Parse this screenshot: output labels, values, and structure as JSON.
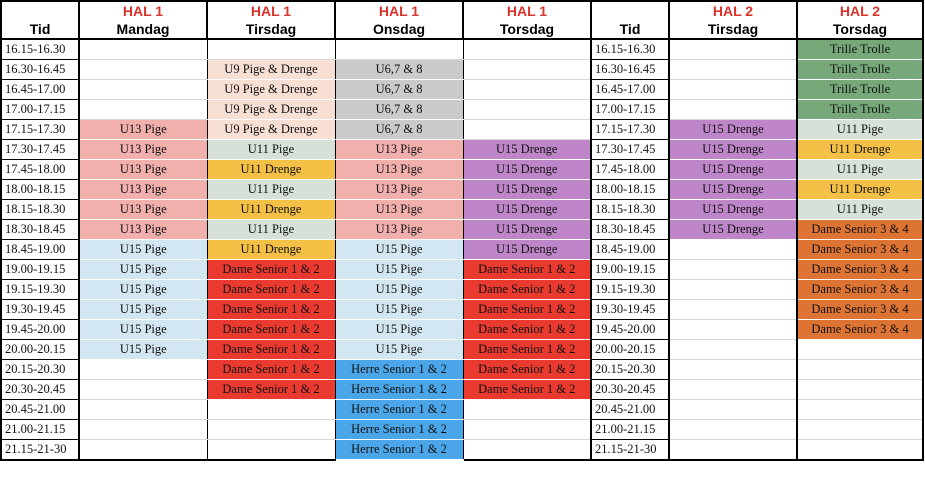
{
  "halls": [
    "HAL 1",
    "HAL 1",
    "HAL 1",
    "HAL 1",
    "",
    "HAL 2",
    "HAL 2"
  ],
  "headers": [
    "Tid",
    "Mandag",
    "Tirsdag",
    "Onsdag",
    "Torsdag",
    "Tid",
    "Tirsdag",
    "Torsdag"
  ],
  "colors": {
    "pink": "#f2b0ad",
    "peach": "#f7dfd3",
    "grey": "#cbcbcb",
    "sage": "#d6e1d8",
    "orange": "#f4c046",
    "red": "#ea3a2f",
    "purple": "#be86c8",
    "lightblue": "#d2e7f2",
    "blue": "#4aa6e8",
    "green": "#76a87a",
    "darkorange": "#dd7434"
  },
  "columns": [
    [],
    [
      {
        "from": 4,
        "to": 9,
        "label": "U13 Pige",
        "color": "pink"
      },
      {
        "from": 10,
        "to": 15,
        "label": "U15 Pige",
        "color": "lightblue"
      }
    ],
    [
      {
        "from": 1,
        "to": 4,
        "label": "U9 Pige & Drenge",
        "color": "peach"
      },
      {
        "from": 5,
        "to": 5,
        "label": "U11 Pige",
        "color": "sage"
      },
      {
        "from": 6,
        "to": 6,
        "label": "U11 Drenge",
        "color": "orange"
      },
      {
        "from": 7,
        "to": 7,
        "label": "U11 Pige",
        "color": "sage"
      },
      {
        "from": 8,
        "to": 8,
        "label": "U11 Drenge",
        "color": "orange"
      },
      {
        "from": 9,
        "to": 9,
        "label": "U11 Pige",
        "color": "sage"
      },
      {
        "from": 10,
        "to": 10,
        "label": "U11 Drenge",
        "color": "orange"
      },
      {
        "from": 11,
        "to": 17,
        "label": "Dame Senior 1 & 2",
        "color": "red"
      }
    ],
    [
      {
        "from": 1,
        "to": 4,
        "label": "U6,7 & 8",
        "color": "grey"
      },
      {
        "from": 5,
        "to": 9,
        "label": "U13 Pige",
        "color": "pink"
      },
      {
        "from": 10,
        "to": 15,
        "label": "U15 Pige",
        "color": "lightblue"
      },
      {
        "from": 16,
        "to": 20,
        "label": "Herre Senior 1 & 2",
        "color": "blue"
      }
    ],
    [
      {
        "from": 5,
        "to": 10,
        "label": "U15 Drenge",
        "color": "purple"
      },
      {
        "from": 11,
        "to": 17,
        "label": "Dame Senior 1 & 2",
        "color": "red"
      }
    ],
    [],
    [
      {
        "from": 4,
        "to": 9,
        "label": "U15 Drenge",
        "color": "purple"
      }
    ],
    [
      {
        "from": 0,
        "to": 3,
        "label": "Trille Trolle",
        "color": "green"
      },
      {
        "from": 4,
        "to": 4,
        "label": "U11 Pige",
        "color": "sage"
      },
      {
        "from": 5,
        "to": 5,
        "label": "U11 Drenge",
        "color": "orange"
      },
      {
        "from": 6,
        "to": 6,
        "label": "U11 Pige",
        "color": "sage"
      },
      {
        "from": 7,
        "to": 7,
        "label": "U11 Drenge",
        "color": "orange"
      },
      {
        "from": 8,
        "to": 8,
        "label": "U11 Pige",
        "color": "sage"
      },
      {
        "from": 9,
        "to": 14,
        "label": "Dame Senior 3 & 4",
        "color": "darkorange"
      }
    ]
  ],
  "times": [
    "16.15-16.30",
    "16.30-16.45",
    "16.45-17.00",
    "17.00-17.15",
    "17.15-17.30",
    "17.30-17.45",
    "17.45-18.00",
    "18.00-18.15",
    "18.15-18.30",
    "18.30-18.45",
    "18.45-19.00",
    "19.00-19.15",
    "19.15-19.30",
    "19.30-19.45",
    "19.45-20.00",
    "20.00-20.15",
    "20.15-20.30",
    "20.30-20.45",
    "20.45-21.00",
    "21.00-21.15",
    "21.15-21-30"
  ]
}
